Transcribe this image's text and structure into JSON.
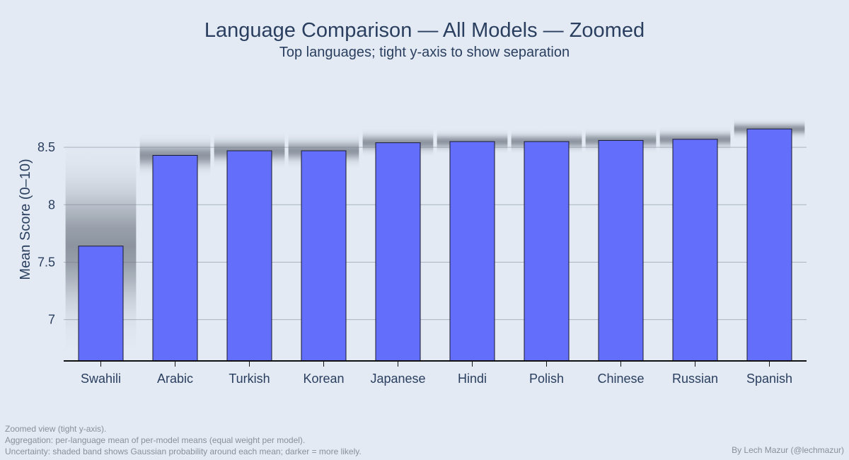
{
  "chart_data": {
    "type": "bar",
    "title": "Language Comparison — All Models — Zoomed",
    "subtitle": "Top languages; tight y-axis to show separation",
    "ylabel": "Mean Score (0–10)",
    "xlabel": "",
    "categories": [
      "Swahili",
      "Arabic",
      "Turkish",
      "Korean",
      "Japanese",
      "Hindi",
      "Polish",
      "Chinese",
      "Russian",
      "Spanish"
    ],
    "values": [
      7.64,
      8.43,
      8.47,
      8.47,
      8.54,
      8.55,
      8.55,
      8.56,
      8.57,
      8.66
    ],
    "uncertainty_sd": [
      0.3,
      0.06,
      0.05,
      0.05,
      0.04,
      0.035,
      0.035,
      0.035,
      0.035,
      0.03
    ],
    "ylim": [
      6.64,
      8.92
    ],
    "yticks": [
      7,
      7.5,
      8,
      8.5
    ],
    "ytick_labels": [
      "7",
      "7.5",
      "8",
      "8.5"
    ],
    "grid": true,
    "legend": "none",
    "colors": {
      "bar": "#636efa",
      "bar_outline": "#1a1a2e",
      "band": "#707884",
      "grid": "#aab4c2",
      "axis": "#111111",
      "background": "#e3eaf3",
      "text": "#2a3f5f"
    }
  },
  "footnotes": [
    "Zoomed view (tight y-axis).",
    "Aggregation: per-language mean of per-model means (equal weight per model).",
    "Uncertainty: shaded band shows Gaussian probability around each mean; darker = more likely."
  ],
  "credit": "By Lech Mazur (@lechmazur)"
}
